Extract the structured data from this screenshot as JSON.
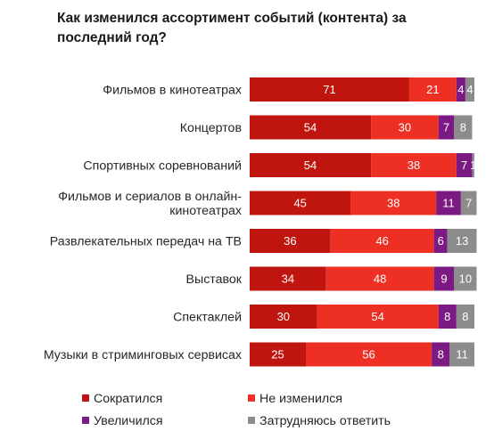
{
  "title": "Как изменился ассортимент событий (контента) за последний год?",
  "chart_data": {
    "type": "bar",
    "orientation": "horizontal",
    "stacked": true,
    "title": "Как изменился ассортимент событий (контента) за последний год?",
    "xlim": [
      0,
      100
    ],
    "grid": false,
    "legend_position": "bottom",
    "categories": [
      [
        "Фильмов в кинотеатрах"
      ],
      [
        "Концертов"
      ],
      [
        "Спортивных соревнований"
      ],
      [
        "Фильмов и сериалов в онлайн-",
        "кинотеатрах"
      ],
      [
        "Развлекательных передач на ТВ"
      ],
      [
        "Выставок"
      ],
      [
        "Спектаклей"
      ],
      [
        "Музыки в стриминговых сервисах"
      ]
    ],
    "series": [
      {
        "name": "Сократился",
        "color": "#c0150e",
        "values": [
          71,
          54,
          54,
          45,
          36,
          34,
          30,
          25
        ]
      },
      {
        "name": "Не изменился",
        "color": "#ee3024",
        "values": [
          21,
          30,
          38,
          38,
          46,
          48,
          54,
          56
        ]
      },
      {
        "name": "Увеличился",
        "color": "#7b1a82",
        "values": [
          4,
          7,
          7,
          11,
          6,
          9,
          8,
          8
        ]
      },
      {
        "name": "Затрудняюсь ответить",
        "color": "#8c8c8c",
        "values": [
          4,
          8,
          1,
          7,
          13,
          10,
          8,
          11
        ]
      }
    ]
  }
}
